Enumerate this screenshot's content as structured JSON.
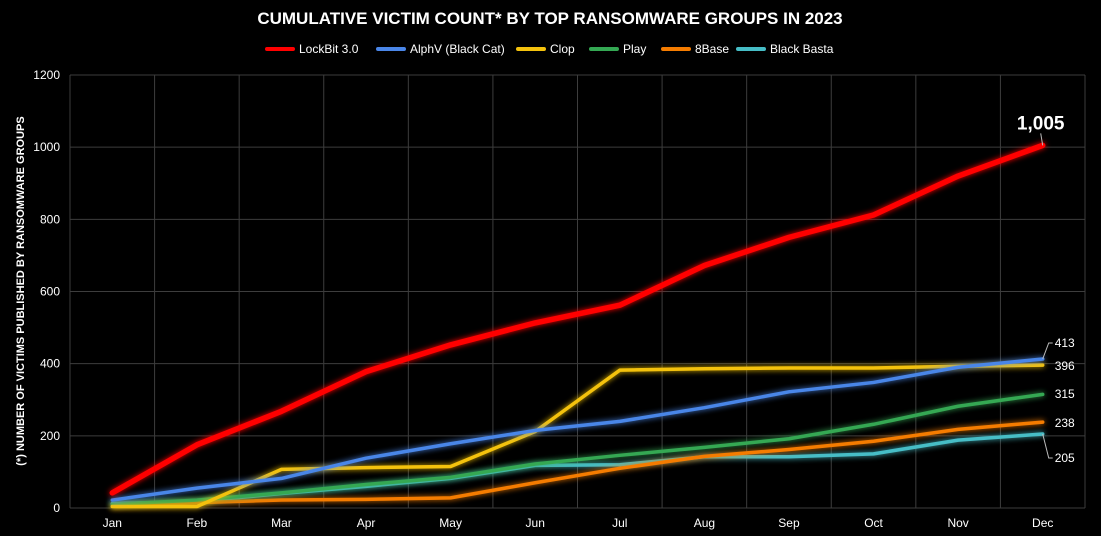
{
  "chart_data": {
    "type": "line",
    "title": "CUMULATIVE VICTIM COUNT* BY TOP RANSOMWARE GROUPS IN 2023",
    "xlabel": "",
    "ylabel": "(*) NUMBER OF VICTIMS PUBLISHED BY RANSOMWARE GROUPS",
    "categories": [
      "Jan",
      "Feb",
      "Mar",
      "Apr",
      "May",
      "Jun",
      "Jul",
      "Aug",
      "Sep",
      "Oct",
      "Nov",
      "Dec"
    ],
    "ylim": [
      0,
      1200
    ],
    "yticks": [
      0,
      200,
      400,
      600,
      800,
      1000,
      1200
    ],
    "grid": true,
    "legend_position": "top-center",
    "series": [
      {
        "name": "LockBit 3.0",
        "color": "#ff0000",
        "values": [
          42,
          175,
          268,
          378,
          452,
          513,
          562,
          672,
          750,
          812,
          920,
          1005
        ],
        "end_label": "1,005"
      },
      {
        "name": "AlphV (Black Cat)",
        "color": "#4a86e8",
        "values": [
          22,
          55,
          82,
          138,
          178,
          215,
          240,
          278,
          322,
          348,
          390,
          413
        ],
        "end_label": "413"
      },
      {
        "name": "Clop",
        "color": "#f4c20d",
        "values": [
          4,
          4,
          107,
          112,
          115,
          212,
          382,
          386,
          388,
          388,
          393,
          396
        ],
        "end_label": "396"
      },
      {
        "name": "Play",
        "color": "#34a853",
        "values": [
          10,
          22,
          42,
          65,
          85,
          122,
          146,
          168,
          192,
          232,
          282,
          315
        ],
        "end_label": "315"
      },
      {
        "name": "8Base",
        "color": "#f57c00",
        "values": [
          5,
          15,
          22,
          24,
          28,
          70,
          110,
          143,
          162,
          185,
          218,
          238
        ],
        "end_label": "238"
      },
      {
        "name": "Black Basta",
        "color": "#46bdc6",
        "values": [
          12,
          18,
          40,
          60,
          82,
          118,
          120,
          142,
          142,
          150,
          188,
          205
        ],
        "end_label": "205"
      }
    ]
  }
}
